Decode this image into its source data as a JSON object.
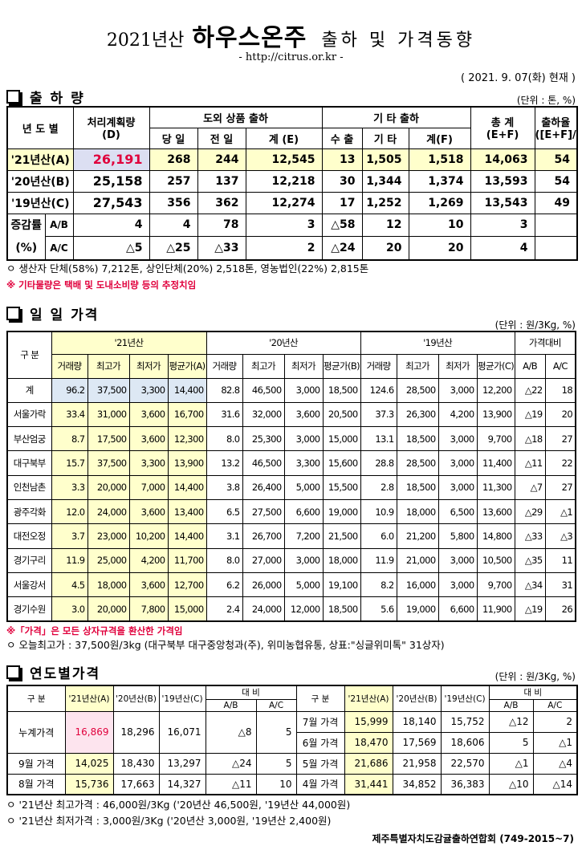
{
  "header": {
    "year": "2021년산",
    "product": "하우스온주",
    "subject": "출하 및 가격동향",
    "url": "- http://citrus.or.kr -",
    "date": "( 2021. 9. 07(화) 현재 )"
  },
  "shipment": {
    "heading": "출 하 량",
    "unit": "(단위 : 톤, %)",
    "columns": {
      "year": "년 도 별",
      "plan": [
        "처리계획량",
        "(D)"
      ],
      "outside": "도외 상품 출하",
      "today": "당 일",
      "yesterday": "전 일",
      "sum_e": "계 (E)",
      "other": "기 타 출하",
      "export": "수 출",
      "etc": "기 타",
      "sum_f": "계(F)",
      "total": [
        "총 계",
        "(E+F)"
      ],
      "rate": [
        "출하율",
        "([E+F]/D)"
      ]
    },
    "rows": [
      {
        "label": "'21년산(A)",
        "values": [
          "26,191",
          "268",
          "244",
          "12,545",
          "13",
          "1,505",
          "1,518",
          "14,063",
          "54"
        ]
      },
      {
        "label": "'20년산(B)",
        "values": [
          "25,158",
          "257",
          "137",
          "12,218",
          "30",
          "1,344",
          "1,374",
          "13,593",
          "54"
        ]
      },
      {
        "label": "'19년산(C)",
        "values": [
          "27,543",
          "356",
          "362",
          "12,274",
          "17",
          "1,252",
          "1,269",
          "13,543",
          "49"
        ]
      }
    ],
    "change": {
      "label": [
        "증감률",
        "(%)"
      ],
      "rows": [
        {
          "label": "A/B",
          "values": [
            "4",
            "4",
            "78",
            "3",
            "△58",
            "12",
            "10",
            "3"
          ]
        },
        {
          "label": "A/C",
          "values": [
            "△5",
            "△25",
            "△33",
            "2",
            "△24",
            "20",
            "20",
            "4"
          ]
        }
      ]
    },
    "notes": [
      "ㅇ 생산자 단체(58%) 7,212톤,   상인단체(20%) 2,518톤,  영농법인(22%) 2,815톤",
      "※ 기타물량은 택배 및 도내소비량 등의 추정치임"
    ]
  },
  "daily": {
    "heading": "일 일 가격",
    "unit": "(단위 : 원/3Kg, %)",
    "columns": {
      "group": "구 분",
      "years": [
        "'21년산",
        "'20년산",
        "'19년산"
      ],
      "compare": "가격대비",
      "sub": [
        [
          "거래량",
          "최고가",
          "최저가",
          "평균가(A)"
        ],
        [
          "거래량",
          "최고가",
          "최저가",
          "평균가(B)"
        ],
        [
          "거래량",
          "최고가",
          "최저가",
          "평균가(C)"
        ]
      ],
      "compare_sub": [
        "A/B",
        "A/C"
      ]
    },
    "rows": [
      {
        "label": "계",
        "values": [
          "96.2",
          "37,500",
          "3,300",
          "14,400",
          "82.8",
          "46,500",
          "3,000",
          "18,500",
          "124.6",
          "28,500",
          "3,000",
          "12,200",
          "△22",
          "18"
        ]
      },
      {
        "label": "서울가락",
        "values": [
          "33.4",
          "31,000",
          "3,600",
          "16,700",
          "31.6",
          "32,000",
          "3,600",
          "20,500",
          "37.3",
          "26,300",
          "4,200",
          "13,900",
          "△19",
          "20"
        ]
      },
      {
        "label": "부산엄궁",
        "values": [
          "8.7",
          "17,500",
          "3,600",
          "12,300",
          "8.0",
          "25,300",
          "3,000",
          "15,000",
          "13.1",
          "18,500",
          "3,000",
          "9,700",
          "△18",
          "27"
        ]
      },
      {
        "label": "대구북부",
        "values": [
          "15.7",
          "37,500",
          "3,300",
          "13,900",
          "13.2",
          "46,500",
          "3,300",
          "15,600",
          "28.8",
          "28,500",
          "3,000",
          "11,400",
          "△11",
          "22"
        ]
      },
      {
        "label": "인천남촌",
        "values": [
          "3.3",
          "20,000",
          "7,000",
          "14,400",
          "3.8",
          "26,400",
          "5,000",
          "15,500",
          "2.8",
          "18,500",
          "3,000",
          "11,300",
          "△7",
          "27"
        ]
      },
      {
        "label": "광주각화",
        "values": [
          "12.0",
          "24,000",
          "3,600",
          "13,400",
          "6.5",
          "27,500",
          "6,600",
          "19,000",
          "10.9",
          "18,000",
          "6,500",
          "13,600",
          "△29",
          "△1"
        ]
      },
      {
        "label": "대전오정",
        "values": [
          "3.7",
          "23,000",
          "10,200",
          "14,400",
          "3.1",
          "26,700",
          "7,200",
          "21,500",
          "6.0",
          "21,200",
          "5,800",
          "14,800",
          "△33",
          "△3"
        ]
      },
      {
        "label": "경기구리",
        "values": [
          "11.9",
          "25,000",
          "4,200",
          "11,700",
          "8.0",
          "27,000",
          "3,000",
          "18,000",
          "11.9",
          "21,000",
          "3,000",
          "10,500",
          "△35",
          "11"
        ]
      },
      {
        "label": "서울강서",
        "values": [
          "4.5",
          "18,000",
          "3,600",
          "12,700",
          "6.2",
          "26,000",
          "5,000",
          "19,100",
          "8.2",
          "16,000",
          "3,000",
          "9,700",
          "△34",
          "31"
        ]
      },
      {
        "label": "경기수원",
        "values": [
          "3.0",
          "20,000",
          "7,800",
          "15,000",
          "2.4",
          "24,000",
          "12,000",
          "18,500",
          "5.6",
          "19,000",
          "6,600",
          "11,900",
          "△19",
          "26"
        ]
      }
    ],
    "notes": [
      "※「가격」은 모든 상자규격을 환산한 가격임",
      "ㅇ 오늘최고가 : 37,500원/3kg (대구북부 대구중앙청과(주),  위미농협유통, 상표:\"싱글위미톡\"  31상자)"
    ]
  },
  "yearly": {
    "heading": "연도별가격",
    "unit": "(단위 : 원/3Kg, %)",
    "columns": {
      "group": "구  분",
      "years": [
        "'21년산(A)",
        "'20년산(B)",
        "'19년산(C)"
      ],
      "compare": "대  비",
      "compare_sub": [
        "A/B",
        "A/C"
      ]
    },
    "left": [
      {
        "label": "누계가격",
        "values": [
          "16,869",
          "18,296",
          "16,071",
          "△8",
          "5"
        ]
      },
      {
        "label": "9월 가격",
        "values": [
          "14,025",
          "18,430",
          "13,297",
          "△24",
          "5"
        ]
      },
      {
        "label": "8월 가격",
        "values": [
          "15,736",
          "17,663",
          "14,327",
          "△11",
          "10"
        ]
      }
    ],
    "right": [
      {
        "label": "7월 가격",
        "values": [
          "15,999",
          "18,140",
          "15,752",
          "△12",
          "2"
        ]
      },
      {
        "label": "6월 가격",
        "values": [
          "18,470",
          "17,569",
          "18,606",
          "5",
          "△1"
        ]
      },
      {
        "label": "5월 가격",
        "values": [
          "21,686",
          "21,958",
          "22,570",
          "△1",
          "△4"
        ]
      },
      {
        "label": "4월 가격",
        "values": [
          "31,441",
          "34,852",
          "36,383",
          "△10",
          "△14"
        ]
      }
    ],
    "notes": [
      "ㅇ '21년산 최고가격 : 46,000원/3Kg ('20년산 46,500원, '19년산 44,000원)",
      "ㅇ '21년산 최저가격 :  3,000원/3Kg ('20년산  3,000원, '19년산 2,400원)"
    ],
    "footer": "제주특별자치도감귤출하연합회 (749-2015~7)"
  }
}
